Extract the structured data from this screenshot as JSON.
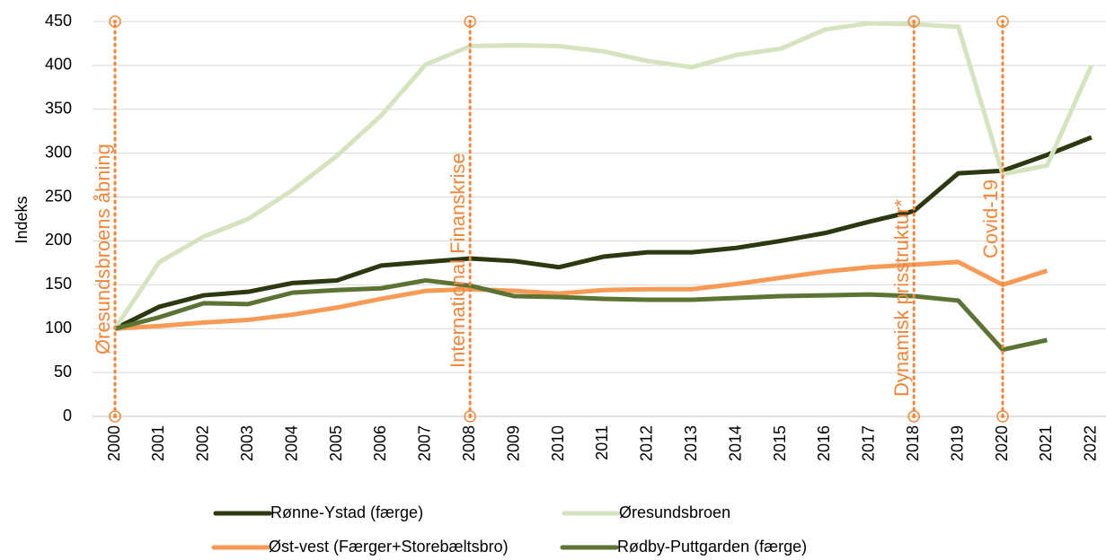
{
  "chart_data": {
    "type": "line",
    "ylabel": "Indeks",
    "categories": [
      "2000",
      "2001",
      "2002",
      "2003",
      "2004",
      "2005",
      "2006",
      "2007",
      "2008",
      "2009",
      "2010",
      "2011",
      "2012",
      "2013",
      "2014",
      "2015",
      "2016",
      "2017",
      "2018",
      "2019",
      "2020",
      "2021",
      "2022"
    ],
    "series": [
      {
        "name": "Rønne-Ystad (færge)",
        "color": "#2b3810",
        "values": [
          100,
          125,
          138,
          142,
          152,
          155,
          172,
          176,
          180,
          177,
          170,
          182,
          187,
          187,
          192,
          200,
          209,
          222,
          234,
          277,
          280,
          298,
          318
        ]
      },
      {
        "name": "Øresundsbroen",
        "color": "#d5e4bf",
        "values": [
          100,
          176,
          205,
          225,
          258,
          297,
          343,
          401,
          422,
          423,
          422,
          416,
          405,
          398,
          412,
          419,
          441,
          448,
          447,
          444,
          276,
          286,
          400
        ]
      },
      {
        "name": "Øst-vest (Færger+Storebæltsbro)",
        "color": "#f79a55",
        "values": [
          100,
          103,
          107,
          110,
          116,
          124,
          134,
          143,
          145,
          143,
          140,
          144,
          145,
          145,
          151,
          158,
          165,
          170,
          173,
          176,
          150,
          166,
          null
        ]
      },
      {
        "name": "Rødby-Puttgarden (færge)",
        "color": "#5b7434",
        "values": [
          100,
          113,
          129,
          128,
          141,
          144,
          146,
          155,
          149,
          137,
          136,
          134,
          133,
          133,
          135,
          137,
          138,
          139,
          137,
          132,
          76,
          87,
          null
        ]
      }
    ],
    "ylim": [
      0,
      450
    ],
    "yticks": [
      0,
      50,
      100,
      150,
      200,
      250,
      300,
      350,
      400,
      450
    ],
    "grid": true,
    "annotation_color": "#f2863a",
    "annotations": [
      {
        "x": "2000",
        "label": "Øresundsbroens åbning"
      },
      {
        "x": "2008",
        "label": "International Finanskrise"
      },
      {
        "x": "2018",
        "label": "Dynamisk prisstruktur*"
      },
      {
        "x": "2020",
        "label": "Covid-19"
      }
    ]
  }
}
